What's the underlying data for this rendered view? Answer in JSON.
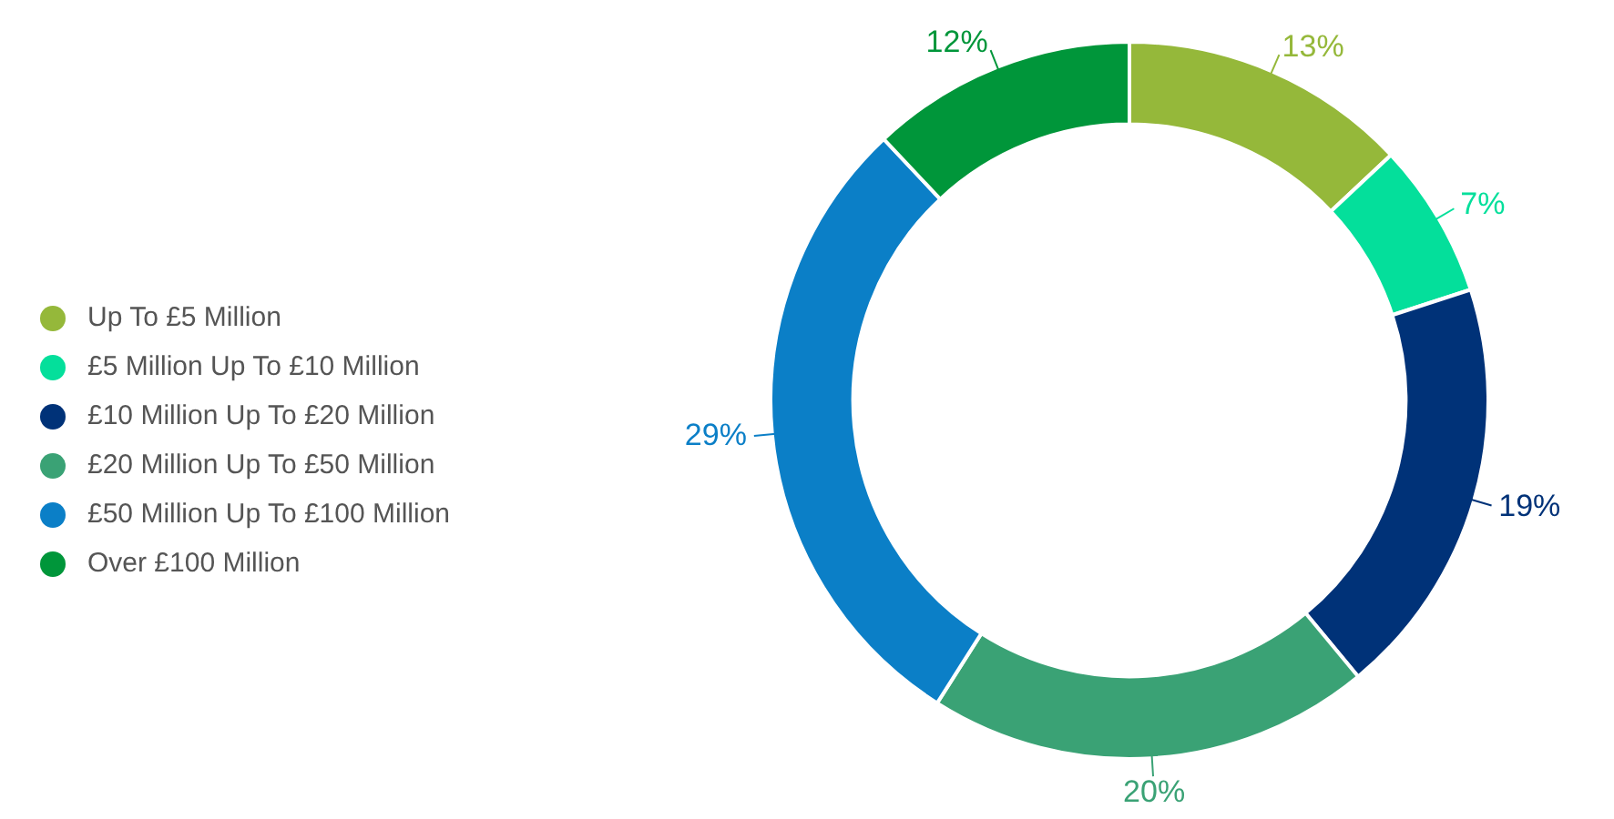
{
  "chart_data": {
    "type": "donut",
    "categories": [
      "Up To £5 Million",
      "£5 Million Up To £10 Million",
      "£10 Million Up To £20 Million",
      "£20 Million Up To £50 Million",
      "£50 Million Up To £100 Million",
      "Over £100 Million"
    ],
    "values": [
      13,
      7,
      19,
      20,
      29,
      12
    ],
    "colors": [
      "#95b83a",
      "#04df9b",
      "#003278",
      "#3aa275",
      "#0b7fc7",
      "#00963a"
    ],
    "value_labels": [
      "13%",
      "7%",
      "19%",
      "20%",
      "29%",
      "12%"
    ],
    "legend": "left"
  }
}
